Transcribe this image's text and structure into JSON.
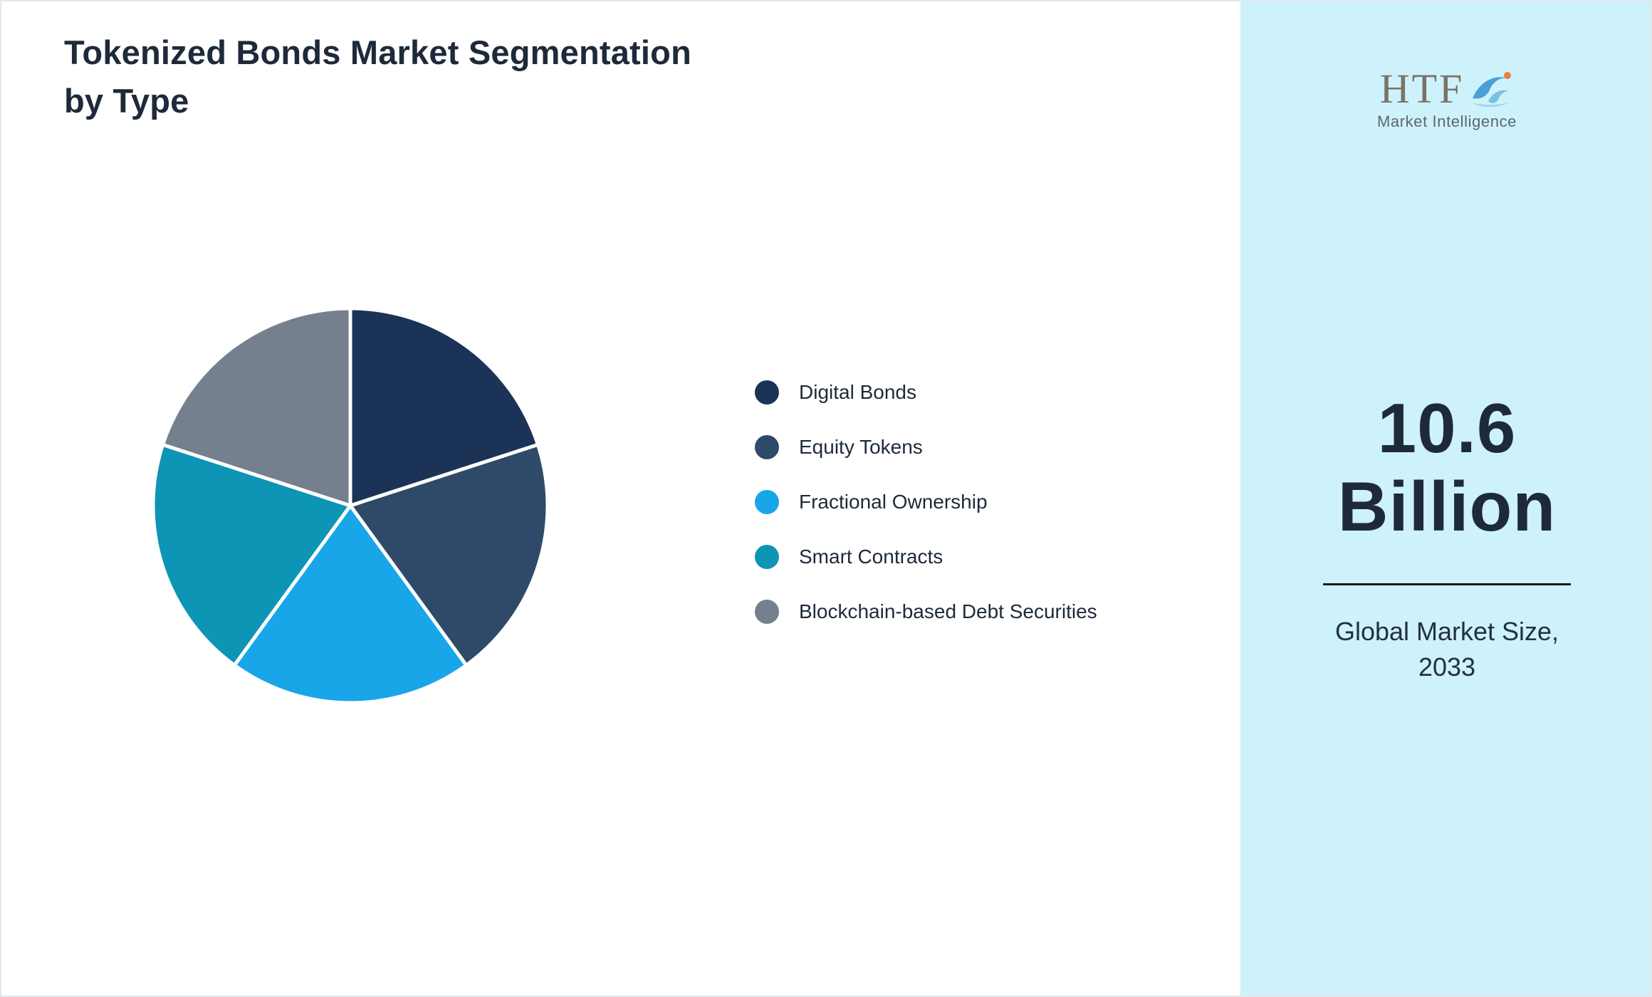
{
  "title": "Tokenized Bonds Market Segmentation by Type",
  "chart_data": {
    "type": "pie",
    "title": "Tokenized Bonds Market Segmentation by Type",
    "categories": [
      "Digital Bonds",
      "Equity Tokens",
      "Fractional Ownership",
      "Smart Contracts",
      "Blockchain-based Debt Securities"
    ],
    "values": [
      20,
      20,
      20,
      20,
      20
    ],
    "unit": "percent-share",
    "colors": [
      "#1b3356",
      "#2f4a68",
      "#18a6e9",
      "#0e94b5",
      "#75808e"
    ],
    "start_angle_deg": 0,
    "direction": "clockwise",
    "legend_position": "right",
    "slice_border_color": "#ffffff"
  },
  "sidebar": {
    "background": "#cdf2fb",
    "logo": {
      "text": "HTF",
      "subtext": "Market Intelligence"
    },
    "market_size_line1": "10.6",
    "market_size_line2": "Billion",
    "caption_line1": "Global Market Size,",
    "caption_line2": "2033"
  }
}
